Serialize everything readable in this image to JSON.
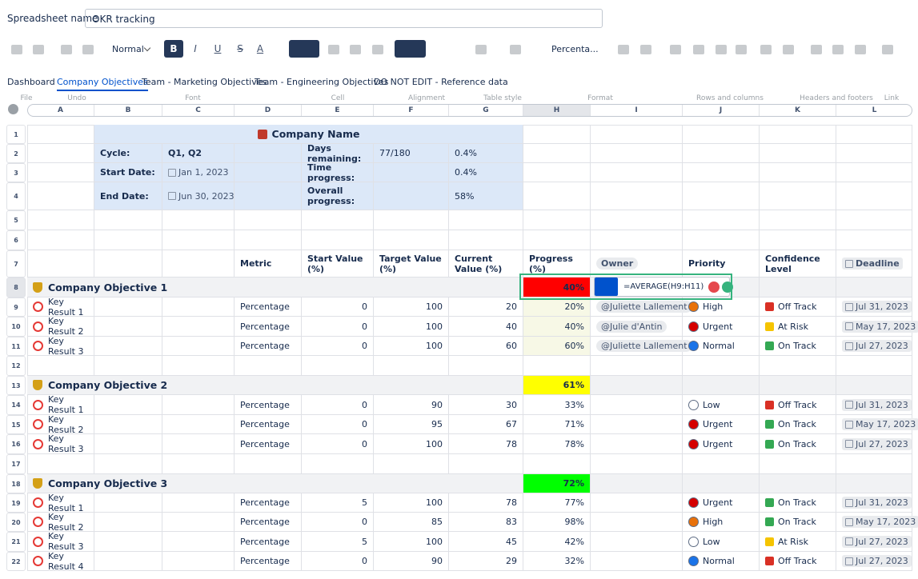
{
  "header": {
    "label": "Spreadsheet name",
    "name": "OKR tracking"
  },
  "toolbar": {
    "style": "Normal",
    "format_buttons": [
      "B",
      "I",
      "U",
      "S",
      "A"
    ],
    "number_format": "Percenta...",
    "groups": [
      "File",
      "Undo",
      "Font",
      "Cell",
      "Alignment",
      "Table style",
      "Format",
      "Rows and columns",
      "Headers and footers",
      "Link"
    ]
  },
  "tabs": {
    "items": [
      "Dashboard",
      "Company Objectives",
      "Team - Marketing Objectives",
      "Team - Engineering Objectives",
      "DO NOT EDIT - Reference data"
    ],
    "active": 1
  },
  "sheet": {
    "columns": [
      "A",
      "B",
      "C",
      "D",
      "E",
      "F",
      "G",
      "H",
      "I",
      "J",
      "K",
      "L"
    ],
    "formula": "=AVERAGE(H9:H11)",
    "rows": [
      {
        "number": 1,
        "cells": [
          null,
          null,
          null,
          "Company Name",
          null,
          null,
          null,
          null,
          null,
          null,
          null,
          null
        ]
      },
      {
        "number": 2,
        "cells": [
          null,
          "Cycle:",
          "Q1, Q2",
          null,
          "Days remaining:",
          "77/180",
          "0.4%",
          null,
          null,
          null,
          null,
          null
        ]
      },
      {
        "number": 3,
        "cells": [
          null,
          "Start Date:",
          "Jan 1, 2023",
          null,
          "Time progress:",
          null,
          "0.4%",
          null,
          null,
          null,
          null,
          null
        ]
      },
      {
        "number": 4,
        "cells": [
          null,
          "End Date:",
          "Jun 30, 2023",
          null,
          "Overall progress:",
          null,
          "58%",
          null,
          null,
          null,
          null,
          null
        ]
      },
      {
        "number": 5,
        "cells": [
          null,
          null,
          null,
          null,
          null,
          null,
          null,
          null,
          null,
          null,
          null,
          null
        ]
      },
      {
        "number": 6,
        "cells": [
          null,
          null,
          null,
          null,
          null,
          null,
          null,
          null,
          null,
          null,
          null,
          null
        ]
      },
      {
        "number": 7,
        "cells": [
          null,
          null,
          null,
          "Metric",
          "Start Value (%)",
          "Target Value (%)",
          "Current Value (%)",
          "Progress (%)",
          "Owner",
          "Priority",
          "Confidence Level",
          "Deadline"
        ]
      },
      {
        "number": 8,
        "cells": [
          "Company Objective 1",
          null,
          null,
          null,
          null,
          null,
          null,
          {
            "text": "40%",
            "fill": "#ff0000"
          },
          null,
          null,
          null,
          null
        ]
      },
      {
        "number": 9,
        "cells": [
          "Key Result 1",
          null,
          null,
          "Percentage",
          0,
          100,
          20,
          "20%",
          "@Juliette Lallement",
          {
            "text": "High",
            "color": "#e8710a"
          },
          {
            "text": "Off Track",
            "color": "#d93025"
          },
          "Jul 31, 2023"
        ]
      },
      {
        "number": 10,
        "cells": [
          "Key Result 2",
          null,
          null,
          "Percentage",
          0,
          100,
          40,
          "40%",
          "@Julie d'Antin",
          {
            "text": "Urgent",
            "color": "#d50000"
          },
          {
            "text": "At Risk",
            "color": "#f5c400"
          },
          "May 17, 2023"
        ]
      },
      {
        "number": 11,
        "cells": [
          "Key Result 3",
          null,
          null,
          "Percentage",
          0,
          100,
          60,
          "60%",
          "@Juliette Lallement",
          {
            "text": "Normal",
            "color": "#1a73e8"
          },
          {
            "text": "On Track",
            "color": "#34a853"
          },
          "Jul 27, 2023"
        ]
      },
      {
        "number": 12,
        "cells": [
          null,
          null,
          null,
          null,
          null,
          null,
          null,
          null,
          null,
          null,
          null,
          null
        ]
      },
      {
        "number": 13,
        "cells": [
          "Company Objective 2",
          null,
          null,
          null,
          null,
          null,
          null,
          {
            "text": "61%",
            "fill": "#ffff00"
          },
          null,
          null,
          null,
          null
        ]
      },
      {
        "number": 14,
        "cells": [
          "Key Result 1",
          null,
          null,
          "Percentage",
          0,
          90,
          30,
          "33%",
          null,
          {
            "text": "Low",
            "color": "#ffffff"
          },
          {
            "text": "Off Track",
            "color": "#d93025"
          },
          "Jul 31, 2023"
        ]
      },
      {
        "number": 15,
        "cells": [
          "Key Result 2",
          null,
          null,
          "Percentage",
          0,
          95,
          67,
          "71%",
          null,
          {
            "text": "Urgent",
            "color": "#d50000"
          },
          {
            "text": "On Track",
            "color": "#34a853"
          },
          "May 17, 2023"
        ]
      },
      {
        "number": 16,
        "cells": [
          "Key Result 3",
          null,
          null,
          "Percentage",
          0,
          100,
          78,
          "78%",
          null,
          {
            "text": "Urgent",
            "color": "#d50000"
          },
          {
            "text": "On Track",
            "color": "#34a853"
          },
          "Jul 27, 2023"
        ]
      },
      {
        "number": 17,
        "cells": [
          null,
          null,
          null,
          null,
          null,
          null,
          null,
          null,
          null,
          null,
          null,
          null
        ]
      },
      {
        "number": 18,
        "cells": [
          "Company Objective 3",
          null,
          null,
          null,
          null,
          null,
          null,
          {
            "text": "72%",
            "fill": "#00ff00"
          },
          null,
          null,
          null,
          null
        ]
      },
      {
        "number": 19,
        "cells": [
          "Key Result 1",
          null,
          null,
          "Percentage",
          5,
          100,
          78,
          "77%",
          null,
          {
            "text": "Urgent",
            "color": "#d50000"
          },
          {
            "text": "On Track",
            "color": "#34a853"
          },
          "Jul 31, 2023"
        ]
      },
      {
        "number": 20,
        "cells": [
          "Key Result 2",
          null,
          null,
          "Percentage",
          0,
          85,
          83,
          "98%",
          null,
          {
            "text": "High",
            "color": "#e8710a"
          },
          {
            "text": "On Track",
            "color": "#34a853"
          },
          "May 17, 2023"
        ]
      },
      {
        "number": 21,
        "cells": [
          "Key Result 3",
          null,
          null,
          "Percentage",
          5,
          100,
          45,
          "42%",
          null,
          {
            "text": "Low",
            "color": "#ffffff"
          },
          {
            "text": "At Risk",
            "color": "#f5c400"
          },
          "Jul 27, 2023"
        ]
      },
      {
        "number": 22,
        "cells": [
          "Key Result 4",
          null,
          null,
          "Percentage",
          0,
          90,
          29,
          "32%",
          null,
          {
            "text": "Normal",
            "color": "#1a73e8"
          },
          {
            "text": "Off Track",
            "color": "#d93025"
          },
          "Jul 27, 2023"
        ]
      }
    ]
  }
}
